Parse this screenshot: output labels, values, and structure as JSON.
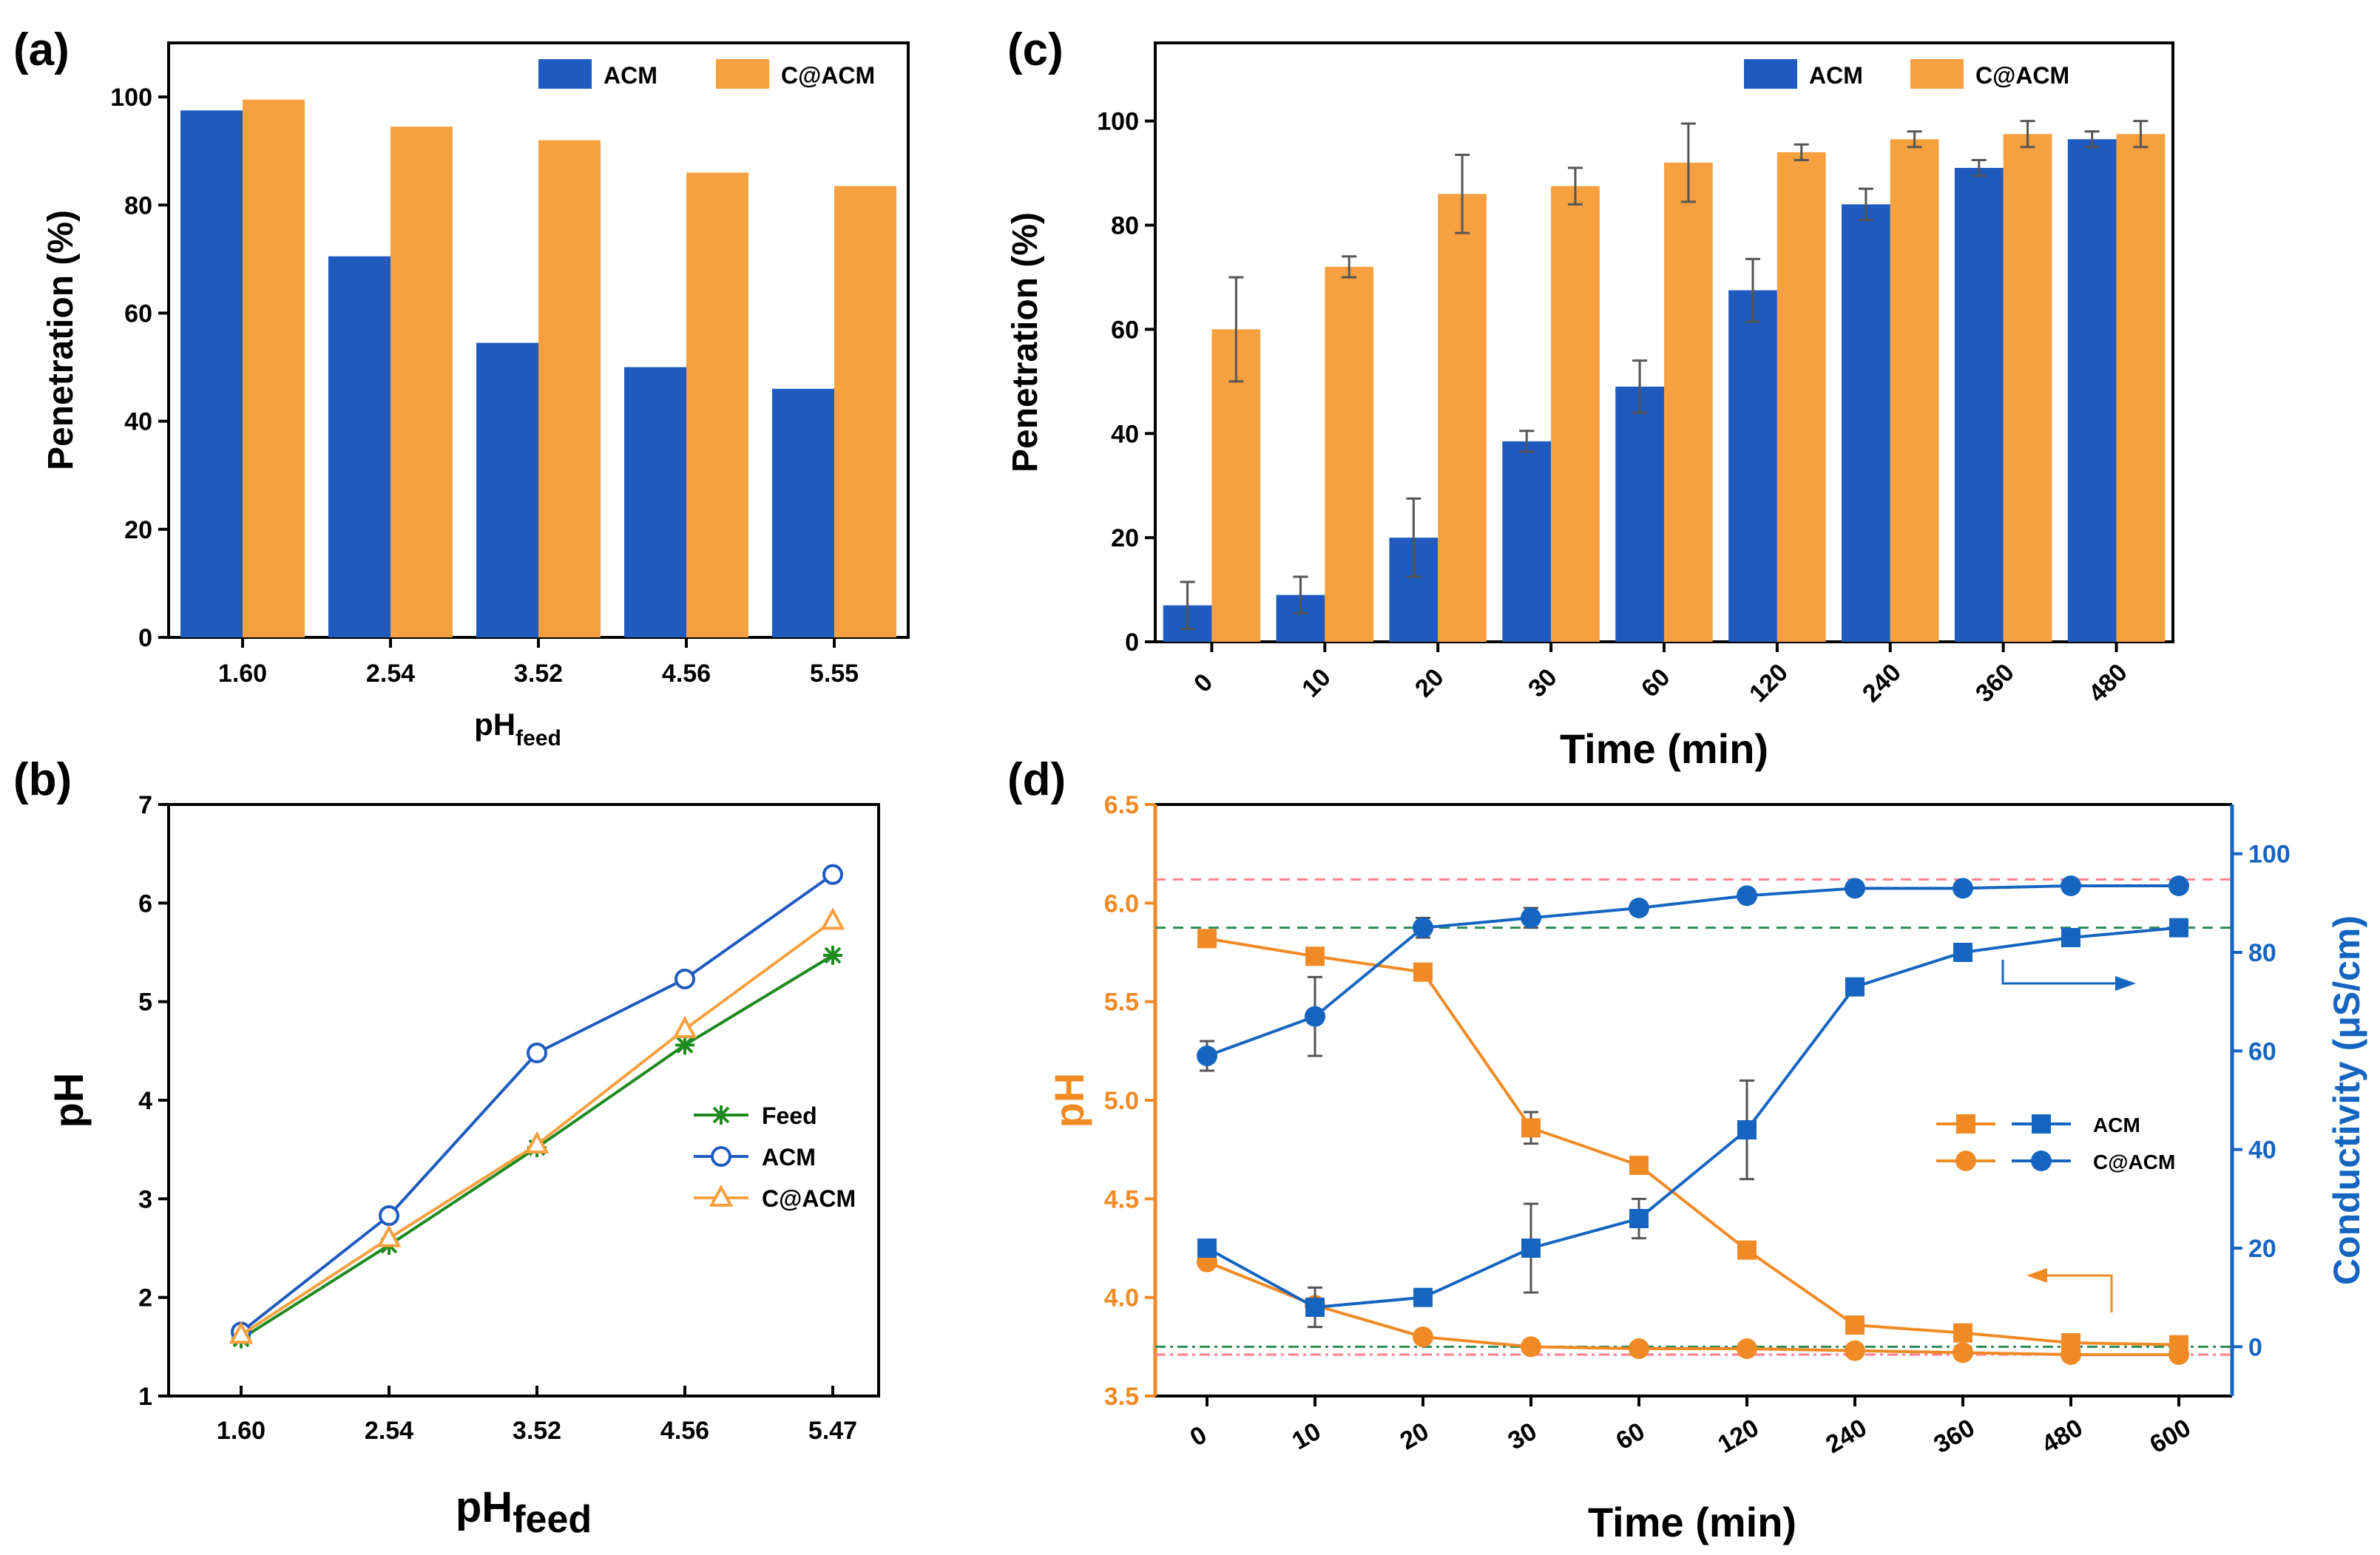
{
  "colors": {
    "acm": "#1f5bbf",
    "cacm": "#f7a03f",
    "feed": "#1f8a1f",
    "orange_axis": "#f08a24",
    "blue_axis": "#1565c0",
    "ref_red": "#ff7f90",
    "ref_green": "#2e8b57"
  },
  "chart_data": [
    {
      "panel": "(a)",
      "type": "bar",
      "xlabel_main": "pH",
      "xlabel_sub": "feed",
      "ylabel": "Penetration (%)",
      "categories": [
        "1.60",
        "2.54",
        "3.52",
        "4.56",
        "5.55"
      ],
      "series": [
        {
          "name": "ACM",
          "values": [
            97.5,
            70.5,
            54.5,
            50,
            46
          ]
        },
        {
          "name": "C@ACM",
          "values": [
            99.5,
            94.5,
            92,
            86,
            83.5
          ]
        }
      ],
      "ylim": [
        0,
        110
      ],
      "yticks": [
        "0",
        "20",
        "40",
        "60",
        "80",
        "100"
      ],
      "legend": "top-right"
    },
    {
      "panel": "(b)",
      "type": "line",
      "xlabel_main": "pH",
      "xlabel_sub": "feed",
      "ylabel": "pH",
      "categories": [
        "1.60",
        "2.54",
        "3.52",
        "4.56",
        "5.47"
      ],
      "series": [
        {
          "name": "Feed",
          "marker": "asterisk",
          "values": [
            1.58,
            2.53,
            3.52,
            4.56,
            5.47
          ]
        },
        {
          "name": "ACM",
          "marker": "circle",
          "values": [
            1.65,
            2.83,
            4.48,
            5.23,
            6.29
          ]
        },
        {
          "name": "C@ACM",
          "marker": "triangle",
          "values": [
            1.62,
            2.6,
            3.55,
            4.72,
            5.82
          ]
        }
      ],
      "ylim": [
        1,
        7
      ],
      "yticks": [
        "1",
        "2",
        "3",
        "4",
        "5",
        "6",
        "7"
      ],
      "legend": "center-right"
    },
    {
      "panel": "(c)",
      "type": "bar",
      "xlabel": "Time (min)",
      "ylabel": "Penetration (%)",
      "categories": [
        "0",
        "10",
        "20",
        "30",
        "60",
        "120",
        "240",
        "360",
        "480"
      ],
      "series": [
        {
          "name": "ACM",
          "values": [
            7,
            9,
            20,
            38.5,
            49,
            67.5,
            84,
            91,
            96.5
          ],
          "errors": [
            4.5,
            3.5,
            7.5,
            2,
            5,
            6,
            3,
            1.5,
            1.5
          ]
        },
        {
          "name": "C@ACM",
          "values": [
            60,
            72,
            86,
            87.5,
            92,
            94,
            96.5,
            97.5,
            97.5
          ],
          "errors": [
            10,
            2,
            7.5,
            3.5,
            7.5,
            1.5,
            1.5,
            2.5,
            2.5
          ]
        }
      ],
      "ylim": [
        0,
        115
      ],
      "yticks": [
        "0",
        "20",
        "40",
        "60",
        "80",
        "100"
      ],
      "legend": "top-right"
    },
    {
      "panel": "(d)",
      "type": "line",
      "dual_axis": true,
      "xlabel": "Time (min)",
      "ylabel_left": "pH",
      "ylabel_right": "Conductivity (μS/cm)",
      "categories": [
        "0",
        "10",
        "20",
        "30",
        "60",
        "120",
        "240",
        "360",
        "480",
        "600"
      ],
      "ylim_left": [
        3.5,
        6.5
      ],
      "yticks_left": [
        "3.5",
        "4.0",
        "4.5",
        "5.0",
        "5.5",
        "6.0",
        "6.5"
      ],
      "ylim_right": [
        -10,
        110
      ],
      "yticks_right": [
        "0",
        "20",
        "40",
        "60",
        "80",
        "100"
      ],
      "series": [
        {
          "name": "ACM",
          "axis": "left",
          "marker": "square",
          "values": [
            5.82,
            5.73,
            5.65,
            4.86,
            4.67,
            4.24,
            3.86,
            3.82,
            3.77,
            3.76
          ],
          "errors": [
            0,
            0.03,
            0.02,
            0.08,
            0.04,
            0,
            0,
            0,
            0,
            0
          ]
        },
        {
          "name": "C@ACM",
          "axis": "left",
          "marker": "circle",
          "values": [
            4.18,
            3.96,
            3.8,
            3.75,
            3.74,
            3.74,
            3.73,
            3.72,
            3.71,
            3.71
          ],
          "errors": [
            0,
            0,
            0,
            0,
            0,
            0,
            0,
            0,
            0,
            0
          ]
        },
        {
          "name": "ACM",
          "axis": "right",
          "marker": "square",
          "values": [
            20,
            8,
            10,
            20,
            26,
            44,
            73,
            80,
            83,
            85
          ],
          "errors": [
            0,
            4,
            0,
            9,
            4,
            10,
            1.5,
            0,
            0,
            0
          ]
        },
        {
          "name": "C@ACM",
          "axis": "right",
          "marker": "circle",
          "values": [
            59,
            67,
            85,
            87,
            89,
            91.5,
            93,
            93,
            93.5,
            93.5
          ],
          "errors": [
            3,
            8,
            2,
            2,
            0,
            0,
            0,
            0,
            0,
            0
          ]
        }
      ],
      "reference_lines_left": [
        6.12,
        3.71
      ],
      "reference_lines_right": [
        85,
        0
      ],
      "legend": "center-right"
    }
  ]
}
